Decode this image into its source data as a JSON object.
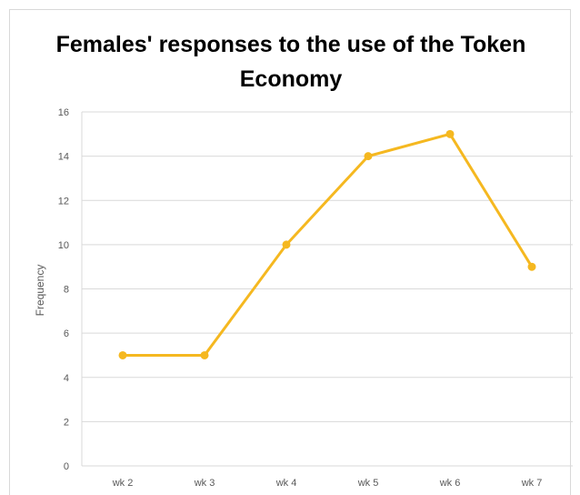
{
  "chart_data": {
    "type": "line",
    "title": "Females' responses to the use of the Token Economy",
    "xlabel": "",
    "ylabel": "Frequency",
    "categories": [
      "wk 2",
      "wk 3",
      "wk 4",
      "wk 5",
      "wk 6",
      "wk 7"
    ],
    "series": [
      {
        "values": [
          5,
          5,
          10,
          14,
          15,
          9
        ],
        "color": "#f5b820"
      }
    ],
    "ylim": [
      0,
      16
    ],
    "yticks": [
      0,
      2,
      4,
      6,
      8,
      10,
      12,
      14,
      16
    ],
    "grid": true,
    "legend": "none"
  }
}
